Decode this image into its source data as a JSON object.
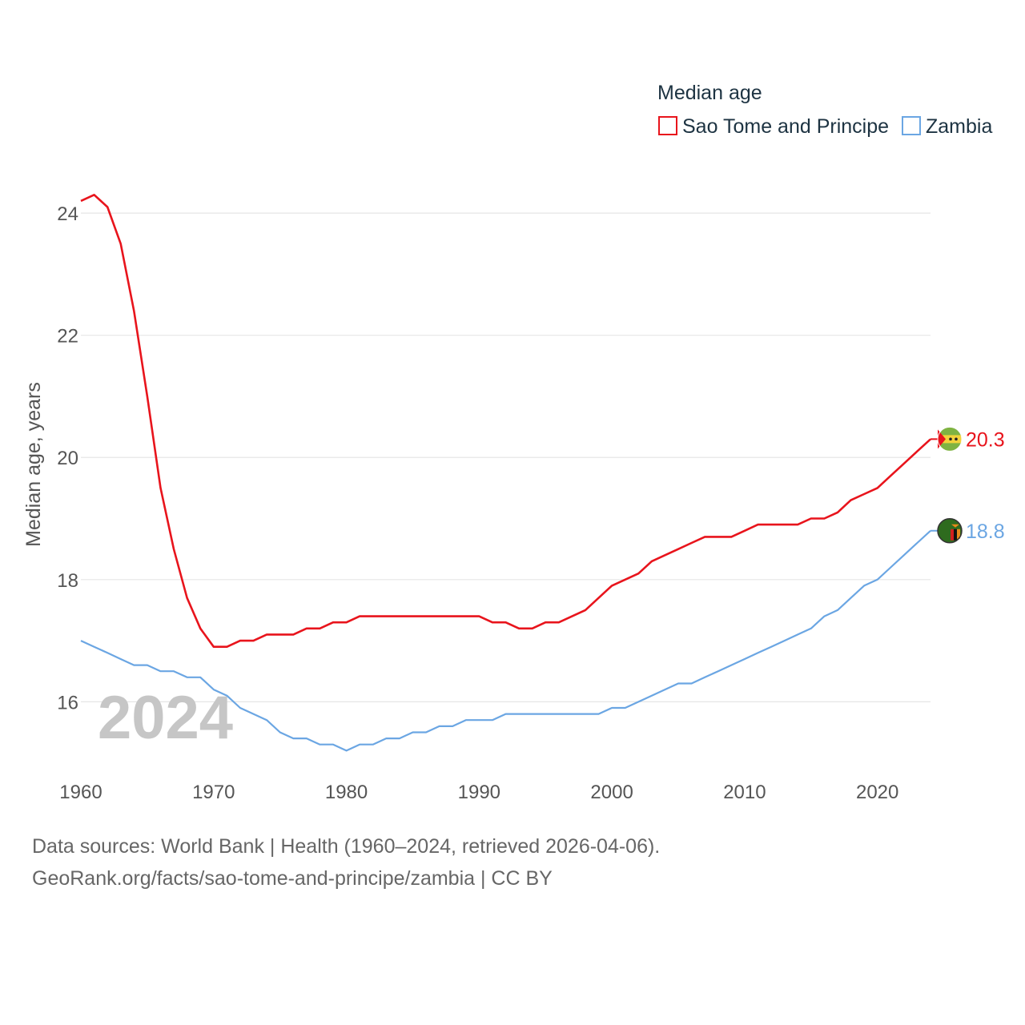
{
  "chart_data": {
    "type": "line",
    "legend_title": "Median age",
    "ylabel": "Median age, years",
    "xlim": [
      1960,
      2024
    ],
    "ylim": [
      15.1,
      24.5
    ],
    "yticks": [
      16,
      18,
      20,
      22,
      24
    ],
    "xticks": [
      1960,
      1970,
      1980,
      1990,
      2000,
      2010,
      2020
    ],
    "year_label": "2024",
    "x": [
      1960,
      1961,
      1962,
      1963,
      1964,
      1965,
      1966,
      1967,
      1968,
      1969,
      1970,
      1971,
      1972,
      1973,
      1974,
      1975,
      1976,
      1977,
      1978,
      1979,
      1980,
      1981,
      1982,
      1983,
      1984,
      1985,
      1986,
      1987,
      1988,
      1989,
      1990,
      1991,
      1992,
      1993,
      1994,
      1995,
      1996,
      1997,
      1998,
      1999,
      2000,
      2001,
      2002,
      2003,
      2004,
      2005,
      2006,
      2007,
      2008,
      2009,
      2010,
      2011,
      2012,
      2013,
      2014,
      2015,
      2016,
      2017,
      2018,
      2019,
      2020,
      2021,
      2022,
      2023,
      2024
    ],
    "series": [
      {
        "name": "Sao Tome and Principe",
        "color": "#e8141c",
        "end_label": "20.3",
        "flag": "sao-tome-and-principe-flag-icon",
        "values": [
          24.2,
          24.3,
          24.1,
          23.5,
          22.4,
          21.0,
          19.5,
          18.5,
          17.7,
          17.2,
          16.9,
          16.9,
          17.0,
          17.0,
          17.1,
          17.1,
          17.1,
          17.2,
          17.2,
          17.3,
          17.3,
          17.4,
          17.4,
          17.4,
          17.4,
          17.4,
          17.4,
          17.4,
          17.4,
          17.4,
          17.4,
          17.3,
          17.3,
          17.2,
          17.2,
          17.3,
          17.3,
          17.4,
          17.5,
          17.7,
          17.9,
          18.0,
          18.1,
          18.3,
          18.4,
          18.5,
          18.6,
          18.7,
          18.7,
          18.7,
          18.8,
          18.9,
          18.9,
          18.9,
          18.9,
          19.0,
          19.0,
          19.1,
          19.3,
          19.4,
          19.5,
          19.7,
          19.9,
          20.1,
          20.3
        ]
      },
      {
        "name": "Zambia",
        "color": "#6ba6e3",
        "end_label": "18.8",
        "flag": "zambia-flag-icon",
        "values": [
          17.0,
          16.9,
          16.8,
          16.7,
          16.6,
          16.6,
          16.5,
          16.5,
          16.4,
          16.4,
          16.2,
          16.1,
          15.9,
          15.8,
          15.7,
          15.5,
          15.4,
          15.4,
          15.3,
          15.3,
          15.2,
          15.3,
          15.3,
          15.4,
          15.4,
          15.5,
          15.5,
          15.6,
          15.6,
          15.7,
          15.7,
          15.7,
          15.8,
          15.8,
          15.8,
          15.8,
          15.8,
          15.8,
          15.8,
          15.8,
          15.9,
          15.9,
          16.0,
          16.1,
          16.2,
          16.3,
          16.3,
          16.4,
          16.5,
          16.6,
          16.7,
          16.8,
          16.9,
          17.0,
          17.1,
          17.2,
          17.4,
          17.5,
          17.7,
          17.9,
          18.0,
          18.2,
          18.4,
          18.6,
          18.8
        ]
      }
    ]
  },
  "footer": {
    "sources": "Data sources: World Bank | Health (1960–2024, retrieved 2026-04-06).",
    "link": "GeoRank.org/facts/sao-tome-and-principe/zambia | CC BY"
  }
}
